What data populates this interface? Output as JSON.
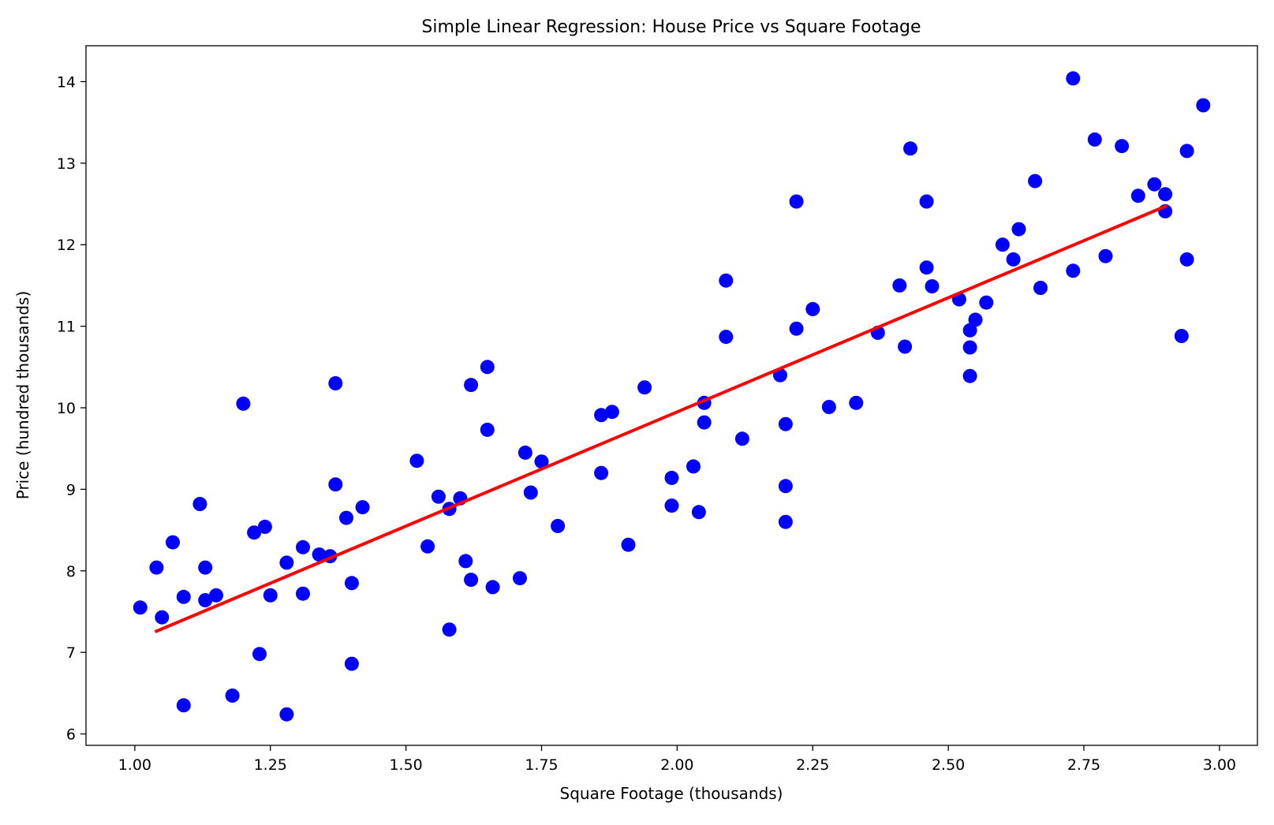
{
  "chart_data": {
    "type": "scatter",
    "title": "Simple Linear Regression: House Price vs Square Footage",
    "xlabel": "Square Footage (thousands)",
    "ylabel": "Price (hundred thousands)",
    "xlim": [
      0.91,
      3.07
    ],
    "ylim": [
      5.86,
      14.44
    ],
    "xticks": [
      1.0,
      1.25,
      1.5,
      1.75,
      2.0,
      2.25,
      2.5,
      2.75,
      3.0
    ],
    "xtick_labels": [
      "1.00",
      "1.25",
      "1.50",
      "1.75",
      "2.00",
      "2.25",
      "2.50",
      "2.75",
      "3.00"
    ],
    "yticks": [
      6,
      7,
      8,
      9,
      10,
      11,
      12,
      13,
      14
    ],
    "ytick_labels": [
      "6",
      "7",
      "8",
      "9",
      "10",
      "11",
      "12",
      "13",
      "14"
    ],
    "grid": false,
    "legend": "none",
    "scatter_color": "#0000ff",
    "line_color": "#ff0000",
    "points": [
      [
        1.01,
        7.55
      ],
      [
        1.04,
        8.04
      ],
      [
        1.05,
        7.43
      ],
      [
        1.07,
        8.35
      ],
      [
        1.09,
        7.68
      ],
      [
        1.09,
        6.35
      ],
      [
        1.12,
        8.82
      ],
      [
        1.13,
        8.04
      ],
      [
        1.13,
        7.64
      ],
      [
        1.15,
        7.7
      ],
      [
        1.18,
        6.47
      ],
      [
        1.2,
        10.05
      ],
      [
        1.22,
        8.47
      ],
      [
        1.23,
        6.98
      ],
      [
        1.24,
        8.54
      ],
      [
        1.25,
        7.7
      ],
      [
        1.28,
        8.1
      ],
      [
        1.28,
        6.24
      ],
      [
        1.31,
        8.29
      ],
      [
        1.31,
        7.72
      ],
      [
        1.34,
        8.2
      ],
      [
        1.36,
        8.18
      ],
      [
        1.37,
        9.06
      ],
      [
        1.37,
        10.3
      ],
      [
        1.39,
        8.65
      ],
      [
        1.4,
        7.85
      ],
      [
        1.4,
        6.86
      ],
      [
        1.42,
        8.78
      ],
      [
        1.52,
        9.35
      ],
      [
        1.54,
        8.3
      ],
      [
        1.56,
        8.91
      ],
      [
        1.58,
        8.76
      ],
      [
        1.58,
        7.28
      ],
      [
        1.6,
        8.89
      ],
      [
        1.61,
        8.12
      ],
      [
        1.62,
        7.89
      ],
      [
        1.62,
        10.28
      ],
      [
        1.65,
        9.73
      ],
      [
        1.65,
        10.5
      ],
      [
        1.66,
        7.8
      ],
      [
        1.71,
        7.91
      ],
      [
        1.72,
        9.45
      ],
      [
        1.73,
        8.96
      ],
      [
        1.75,
        9.34
      ],
      [
        1.78,
        8.55
      ],
      [
        1.86,
        9.91
      ],
      [
        1.86,
        9.2
      ],
      [
        1.88,
        9.95
      ],
      [
        1.91,
        8.32
      ],
      [
        1.94,
        10.25
      ],
      [
        1.99,
        9.14
      ],
      [
        1.99,
        8.8
      ],
      [
        2.03,
        9.28
      ],
      [
        2.04,
        8.72
      ],
      [
        2.05,
        10.06
      ],
      [
        2.05,
        9.82
      ],
      [
        2.09,
        11.56
      ],
      [
        2.09,
        10.87
      ],
      [
        2.12,
        9.62
      ],
      [
        2.19,
        10.4
      ],
      [
        2.2,
        9.04
      ],
      [
        2.2,
        8.6
      ],
      [
        2.2,
        9.8
      ],
      [
        2.22,
        12.53
      ],
      [
        2.22,
        10.97
      ],
      [
        2.25,
        11.21
      ],
      [
        2.28,
        10.01
      ],
      [
        2.33,
        10.06
      ],
      [
        2.37,
        10.92
      ],
      [
        2.41,
        11.5
      ],
      [
        2.42,
        10.75
      ],
      [
        2.43,
        13.18
      ],
      [
        2.46,
        11.72
      ],
      [
        2.46,
        12.53
      ],
      [
        2.47,
        11.49
      ],
      [
        2.52,
        11.33
      ],
      [
        2.54,
        10.95
      ],
      [
        2.54,
        10.74
      ],
      [
        2.54,
        10.39
      ],
      [
        2.55,
        11.08
      ],
      [
        2.57,
        11.29
      ],
      [
        2.6,
        12.0
      ],
      [
        2.62,
        11.82
      ],
      [
        2.63,
        12.19
      ],
      [
        2.66,
        12.78
      ],
      [
        2.67,
        11.47
      ],
      [
        2.73,
        14.04
      ],
      [
        2.73,
        11.68
      ],
      [
        2.77,
        13.29
      ],
      [
        2.79,
        11.86
      ],
      [
        2.82,
        13.21
      ],
      [
        2.85,
        12.6
      ],
      [
        2.88,
        12.74
      ],
      [
        2.9,
        12.62
      ],
      [
        2.9,
        12.41
      ],
      [
        2.93,
        10.88
      ],
      [
        2.94,
        13.15
      ],
      [
        2.94,
        11.82
      ],
      [
        2.97,
        13.71
      ]
    ],
    "regression_line": {
      "x": [
        1.04,
        2.9
      ],
      "y": [
        7.26,
        12.47
      ]
    }
  }
}
